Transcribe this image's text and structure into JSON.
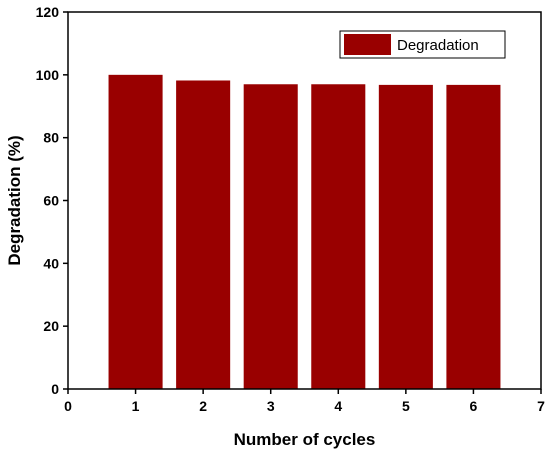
{
  "chart_data": {
    "type": "bar",
    "x": [
      1,
      2,
      3,
      4,
      5,
      6
    ],
    "series": [
      {
        "name": "Degradation",
        "values": [
          100,
          98.2,
          97.0,
          97.0,
          96.8,
          96.8
        ],
        "color": "#990000"
      }
    ],
    "xlabel": "Number of cycles",
    "ylabel": "Degradation (%)",
    "xlim": [
      0,
      7
    ],
    "ylim": [
      0,
      120
    ],
    "xticks": [
      "0",
      "1",
      "2",
      "3",
      "4",
      "5",
      "6",
      "7"
    ],
    "yticks": [
      "0",
      "20",
      "40",
      "60",
      "80",
      "100",
      "120"
    ],
    "legend_position": "top-right",
    "grid": false
  }
}
